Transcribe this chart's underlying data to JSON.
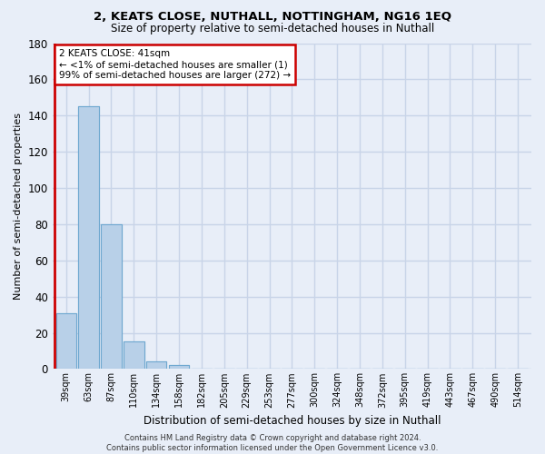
{
  "title": "2, KEATS CLOSE, NUTHALL, NOTTINGHAM, NG16 1EQ",
  "subtitle": "Size of property relative to semi-detached houses in Nuthall",
  "xlabel": "Distribution of semi-detached houses by size in Nuthall",
  "ylabel": "Number of semi-detached properties",
  "categories": [
    "39sqm",
    "63sqm",
    "87sqm",
    "110sqm",
    "134sqm",
    "158sqm",
    "182sqm",
    "205sqm",
    "229sqm",
    "253sqm",
    "277sqm",
    "300sqm",
    "324sqm",
    "348sqm",
    "372sqm",
    "395sqm",
    "419sqm",
    "443sqm",
    "467sqm",
    "490sqm",
    "514sqm"
  ],
  "values": [
    31,
    145,
    80,
    15,
    4,
    2,
    0,
    0,
    0,
    0,
    0,
    0,
    0,
    0,
    0,
    0,
    0,
    0,
    0,
    0,
    0
  ],
  "bar_color": "#b8d0e8",
  "bar_edge_color": "#6fa8d0",
  "ylim": [
    0,
    180
  ],
  "yticks": [
    0,
    20,
    40,
    60,
    80,
    100,
    120,
    140,
    160,
    180
  ],
  "annotation_line1": "2 KEATS CLOSE: 41sqm",
  "annotation_line2": "← <1% of semi-detached houses are smaller (1)",
  "annotation_line3": "99% of semi-detached houses are larger (272) →",
  "annotation_box_color": "#ffffff",
  "annotation_box_edge_color": "#cc0000",
  "red_line_x": -0.5,
  "background_color": "#e8eef8",
  "grid_color": "#c8d4e8",
  "footer": "Contains HM Land Registry data © Crown copyright and database right 2024.\nContains public sector information licensed under the Open Government Licence v3.0."
}
